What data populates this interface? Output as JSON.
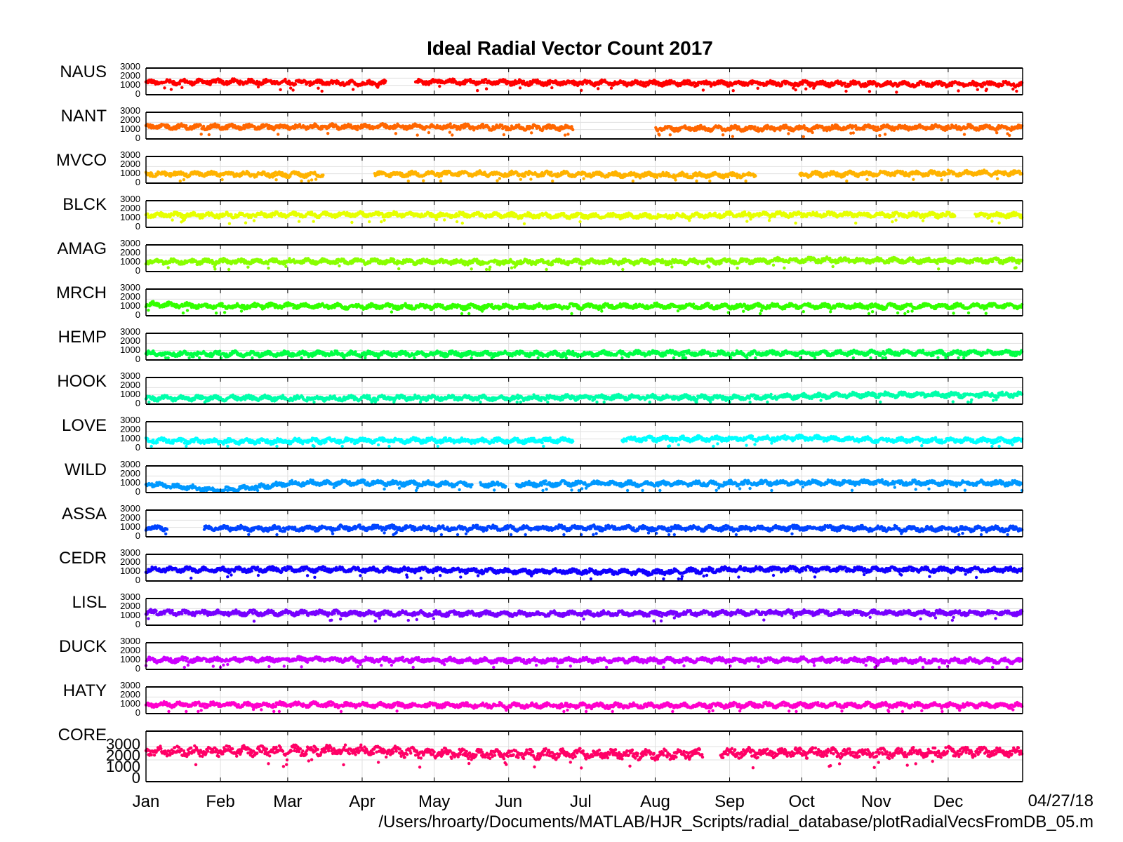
{
  "chart_data": {
    "type": "scatter",
    "title": "Ideal Radial Vector Count 2017",
    "xlabel": "",
    "ylabel": "",
    "x_ticks": [
      "Jan",
      "Feb",
      "Mar",
      "Apr",
      "May",
      "Jun",
      "Jul",
      "Aug",
      "Sep",
      "Oct",
      "Nov",
      "Dec"
    ],
    "x_range": [
      "2017-01-01",
      "2017-12-31"
    ],
    "y_ticks": [
      "0",
      "1000",
      "2000",
      "3000"
    ],
    "ylim": [
      0,
      3000
    ],
    "grid": true,
    "panels": [
      {
        "name": "NAUS",
        "color": "#ff0000",
        "baseline": [
          1400,
          1500,
          1450,
          1300,
          1500,
          1400,
          1350,
          1300,
          1300,
          1250,
          1200,
          1150
        ],
        "gaps": [
          [
            "2017-04-11",
            "2017-04-23"
          ]
        ]
      },
      {
        "name": "NANT",
        "color": "#ff6600",
        "baseline": [
          1400,
          1350,
          1350,
          1400,
          1400,
          1300,
          1250,
          1150,
          1150,
          1200,
          1300,
          1300
        ],
        "gaps": [
          [
            "2017-06-28",
            "2017-08-01"
          ]
        ]
      },
      {
        "name": "MVCO",
        "color": "#ffb300",
        "baseline": [
          1000,
          950,
          900,
          900,
          1000,
          1000,
          950,
          800,
          800,
          900,
          1000,
          1100
        ],
        "gaps": [
          [
            "2017-03-16",
            "2017-04-06"
          ],
          [
            "2017-09-12",
            "2017-09-30"
          ]
        ]
      },
      {
        "name": "BLCK",
        "color": "#e6ff00",
        "baseline": [
          1400,
          1400,
          1450,
          1500,
          1450,
          1350,
          1300,
          1250,
          1450,
          1500,
          1450,
          1400
        ],
        "gaps": [
          [
            "2017-12-04",
            "2017-12-12"
          ]
        ]
      },
      {
        "name": "AMAG",
        "color": "#88ff00",
        "baseline": [
          1100,
          1100,
          1100,
          1100,
          1050,
          1000,
          1050,
          1050,
          1100,
          1300,
          1250,
          1200
        ],
        "gaps": []
      },
      {
        "name": "MRCH",
        "color": "#33ff00",
        "baseline": [
          1300,
          1000,
          1100,
          1000,
          950,
          950,
          1000,
          1050,
          1000,
          1050,
          1000,
          1050
        ],
        "gaps": []
      },
      {
        "name": "HEMP",
        "color": "#00ff44",
        "baseline": [
          600,
          550,
          550,
          550,
          550,
          550,
          550,
          650,
          600,
          650,
          700,
          700
        ],
        "gaps": []
      },
      {
        "name": "HOOK",
        "color": "#00ffaa",
        "baseline": [
          550,
          550,
          550,
          550,
          600,
          550,
          650,
          700,
          600,
          800,
          1000,
          1000
        ],
        "gaps": []
      },
      {
        "name": "LOVE",
        "color": "#00ffff",
        "baseline": [
          800,
          650,
          700,
          800,
          800,
          750,
          900,
          1000,
          1050,
          1150,
          900,
          800
        ],
        "gaps": [
          [
            "2017-06-28",
            "2017-07-18"
          ]
        ]
      },
      {
        "name": "WILD",
        "color": "#0099ff",
        "baseline": [
          900,
          0,
          1000,
          1100,
          900,
          800,
          1000,
          900,
          1000,
          1100,
          1100,
          1000
        ],
        "gaps": [
          [
            "2017-05-17",
            "2017-05-20"
          ],
          [
            "2017-05-31",
            "2017-06-04"
          ]
        ]
      },
      {
        "name": "ASSA",
        "color": "#0044ff",
        "baseline": [
          900,
          850,
          850,
          950,
          900,
          900,
          950,
          900,
          850,
          950,
          850,
          800
        ],
        "gaps": [
          [
            "2017-01-10",
            "2017-01-25"
          ]
        ]
      },
      {
        "name": "CEDR",
        "color": "#1100ff",
        "baseline": [
          1300,
          1250,
          1300,
          1300,
          1250,
          1050,
          1000,
          900,
          1300,
          1350,
          1300,
          1250
        ],
        "gaps": []
      },
      {
        "name": "LISL",
        "color": "#7700ff",
        "baseline": [
          1500,
          1400,
          1400,
          1350,
          1300,
          1300,
          1300,
          1300,
          1400,
          1450,
          1450,
          1400
        ],
        "gaps": []
      },
      {
        "name": "DUCK",
        "color": "#cc00ff",
        "baseline": [
          1000,
          1050,
          1100,
          1050,
          1000,
          900,
          1000,
          950,
          1000,
          1050,
          950,
          900
        ],
        "gaps": []
      },
      {
        "name": "HATY",
        "color": "#ff00cc",
        "baseline": [
          950,
          950,
          950,
          900,
          850,
          850,
          800,
          800,
          850,
          900,
          900,
          850
        ],
        "gaps": []
      },
      {
        "name": "CORE",
        "color": "#ff0066",
        "baseline": [
          1600,
          1650,
          1700,
          1700,
          1500,
          1400,
          1450,
          1400,
          1550,
          1550,
          1500,
          1600
        ],
        "gaps": [
          [
            "2017-08-21",
            "2017-08-28"
          ]
        ]
      }
    ]
  },
  "footer": {
    "date": "04/27/18",
    "path": "/Users/hroarty/Documents/MATLAB/HJR_Scripts/radial_database/plotRadialVecsFromDB_05.m"
  }
}
